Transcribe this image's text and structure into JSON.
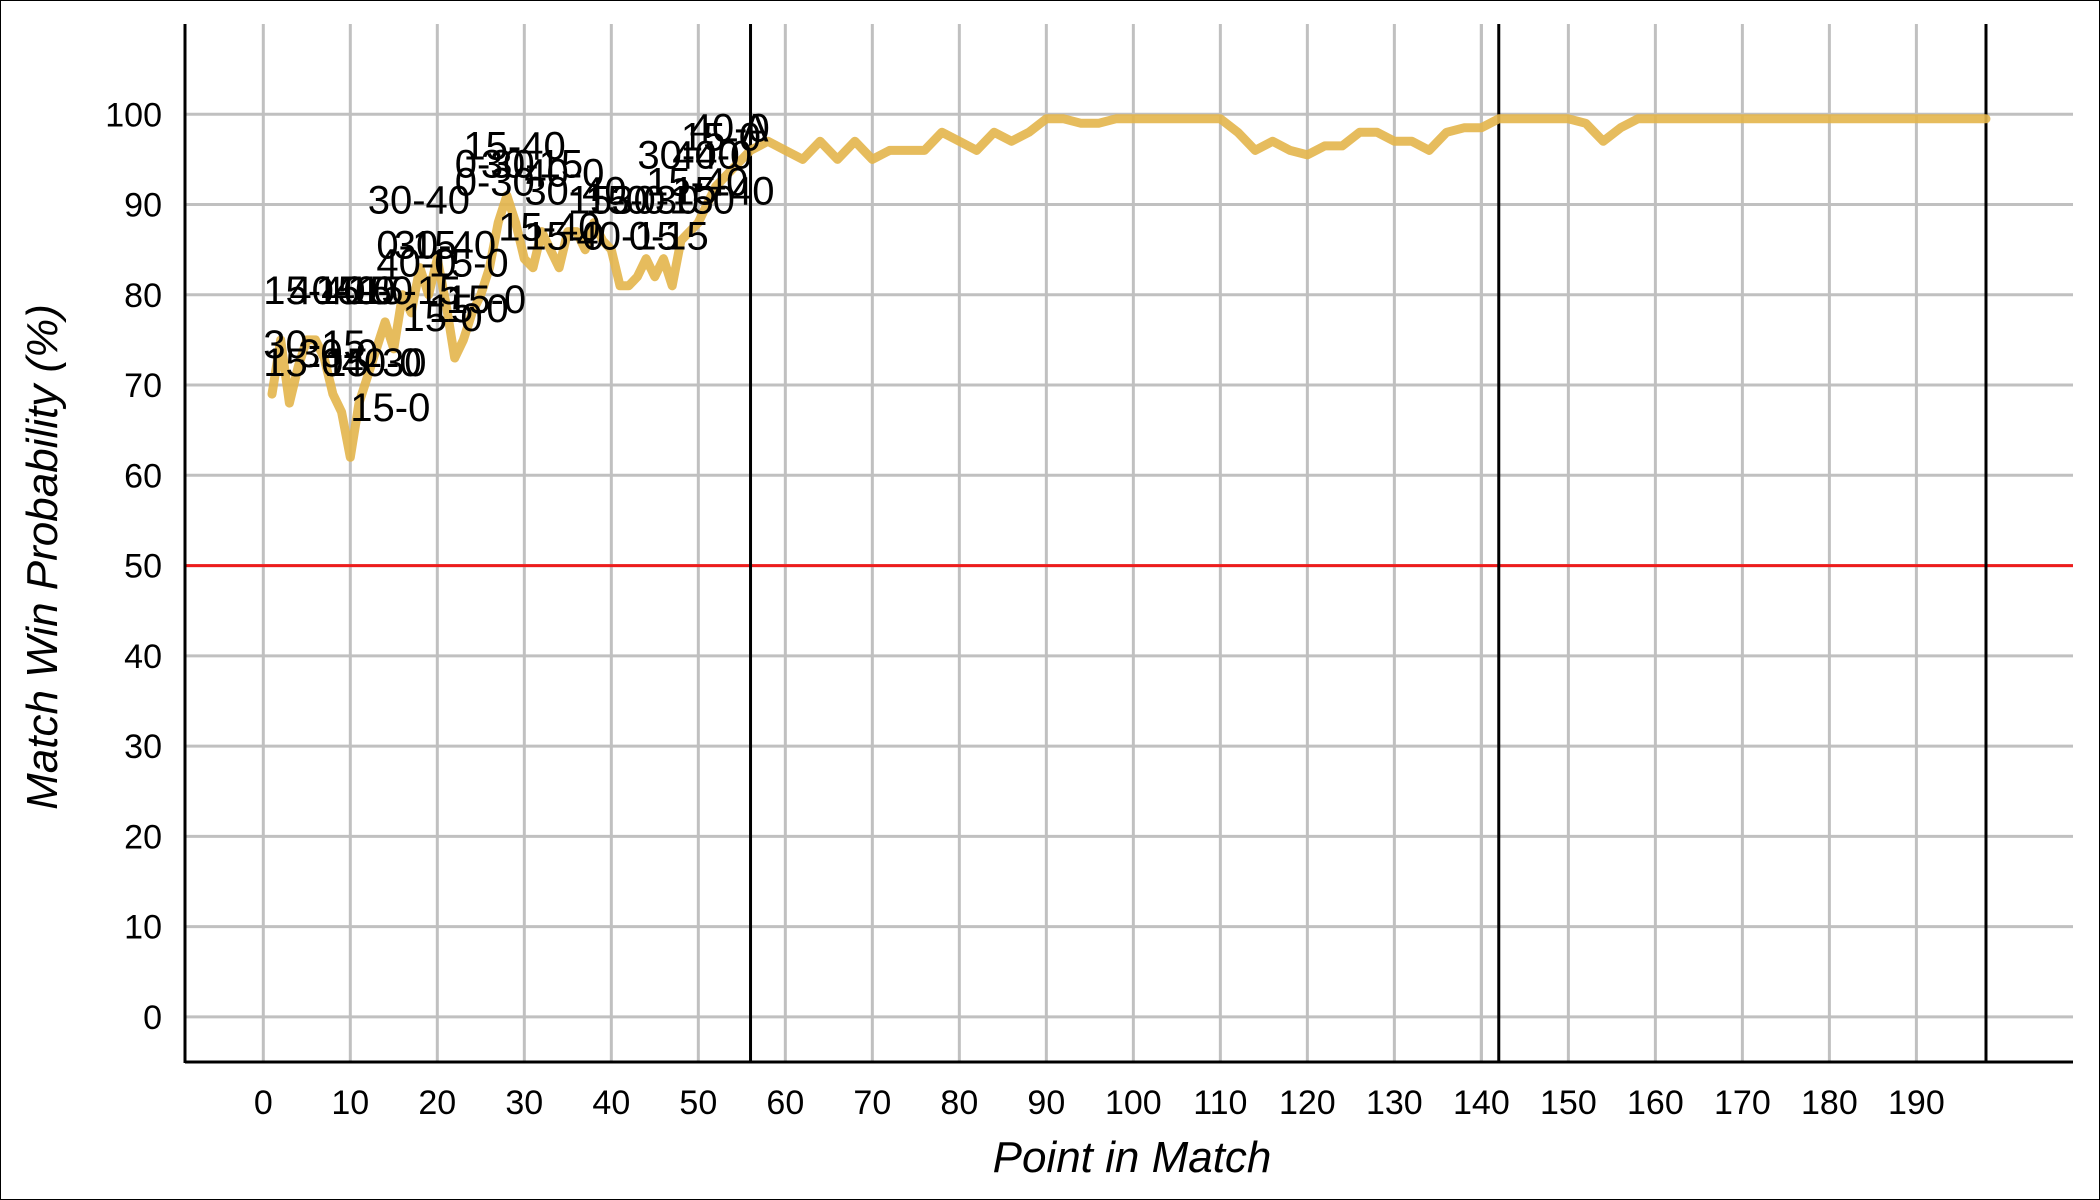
{
  "chart_data": {
    "type": "line",
    "xlabel": "Point in Match",
    "ylabel": "Match Win Probability (%)",
    "xlim": [
      -9,
      208
    ],
    "ylim": [
      -5,
      110
    ],
    "x_ticks": [
      0,
      10,
      20,
      30,
      40,
      50,
      60,
      70,
      80,
      90,
      100,
      110,
      120,
      130,
      140,
      150,
      160,
      170,
      180,
      190
    ],
    "y_ticks": [
      0,
      10,
      20,
      30,
      40,
      50,
      60,
      70,
      80,
      90,
      100
    ],
    "grid": true,
    "reference_line": {
      "y": 50,
      "color": "#ee1c1c"
    },
    "set_boundaries": [
      56,
      142,
      198
    ],
    "series": [
      {
        "color": "#e3b54b",
        "x": [
          1,
          2,
          3,
          4,
          5,
          6,
          7,
          8,
          9,
          10,
          11,
          12,
          13,
          14,
          15,
          16,
          17,
          18,
          19,
          20,
          21,
          22,
          23,
          24,
          25,
          26,
          27,
          28,
          29,
          30,
          31,
          32,
          33,
          34,
          35,
          36,
          37,
          38,
          39,
          40,
          41,
          42,
          43,
          44,
          45,
          46,
          47,
          48,
          49,
          50,
          51,
          52,
          53,
          54,
          55,
          56,
          58,
          60,
          62,
          64,
          66,
          68,
          70,
          72,
          74,
          76,
          78,
          80,
          82,
          84,
          86,
          88,
          90,
          92,
          94,
          96,
          98,
          100,
          102,
          104,
          106,
          108,
          110,
          112,
          114,
          116,
          118,
          120,
          122,
          124,
          126,
          128,
          130,
          132,
          134,
          136,
          138,
          140,
          142,
          144,
          146,
          148,
          150,
          152,
          154,
          156,
          158,
          160,
          162,
          164,
          166,
          168,
          170,
          172,
          174,
          176,
          178,
          180,
          185,
          190,
          195,
          198
        ],
        "y": [
          69,
          75,
          68,
          72,
          75,
          75,
          73,
          69,
          67,
          62,
          68,
          71,
          74,
          77,
          74,
          80,
          78,
          83,
          80,
          84,
          79,
          73,
          75,
          78,
          80,
          83,
          88,
          91,
          88,
          84,
          83,
          87,
          85,
          83,
          87,
          87,
          85,
          88,
          86,
          85,
          81,
          81,
          82,
          84,
          82,
          84,
          81,
          86,
          87,
          88,
          90,
          92,
          93,
          94,
          95,
          96,
          97,
          96,
          95,
          97,
          95,
          97,
          95,
          96,
          96,
          96,
          98,
          97,
          96,
          98,
          97,
          98,
          99.5,
          99.5,
          99,
          99,
          99.5,
          99.5,
          99.5,
          99.5,
          99.5,
          99.5,
          99.5,
          98,
          96,
          97,
          96,
          95.5,
          96.5,
          96.5,
          98,
          98,
          97,
          97,
          96,
          98,
          98.5,
          98.5,
          99.5,
          99.5,
          99.5,
          99.5,
          99.5,
          99,
          97,
          98.5,
          99.5,
          99.5,
          99.5,
          99.5,
          99.5,
          99.5,
          99.5,
          99.5,
          99.5,
          99.5,
          99.5,
          99.5,
          99.5,
          99.5,
          99.5,
          99.5
        ]
      }
    ],
    "annotations": [
      {
        "text": "15-0",
        "x": 10,
        "y": 66
      },
      {
        "text": "15-40",
        "x": 0,
        "y": 79
      },
      {
        "text": "40-15",
        "x": 3,
        "y": 79
      },
      {
        "text": "15-0",
        "x": 6,
        "y": 79
      },
      {
        "text": "40-0",
        "x": 8,
        "y": 79
      },
      {
        "text": "15-15",
        "x": 11,
        "y": 79
      },
      {
        "text": "30-15",
        "x": 0,
        "y": 73
      },
      {
        "text": "15-0",
        "x": 0,
        "y": 71
      },
      {
        "text": "30-0",
        "x": 4,
        "y": 72
      },
      {
        "text": "15-30",
        "x": 7,
        "y": 71
      },
      {
        "text": "40-0",
        "x": 9,
        "y": 71
      },
      {
        "text": "15-0",
        "x": 16,
        "y": 76
      },
      {
        "text": "15-0",
        "x": 19,
        "y": 77
      },
      {
        "text": "15-0",
        "x": 21,
        "y": 78
      },
      {
        "text": "0-15",
        "x": 13,
        "y": 84
      },
      {
        "text": "30-40",
        "x": 15,
        "y": 84
      },
      {
        "text": "40-0",
        "x": 13,
        "y": 82
      },
      {
        "text": "15-0",
        "x": 19,
        "y": 82
      },
      {
        "text": "30-40",
        "x": 12,
        "y": 89
      },
      {
        "text": "15-40",
        "x": 23,
        "y": 95
      },
      {
        "text": "0-30",
        "x": 22,
        "y": 93
      },
      {
        "text": "0-30",
        "x": 22,
        "y": 91
      },
      {
        "text": "30-15",
        "x": 25,
        "y": 93
      },
      {
        "text": "40-0",
        "x": 30,
        "y": 92
      },
      {
        "text": "15-0",
        "x": 35,
        "y": 89
      },
      {
        "text": "15-0",
        "x": 37,
        "y": 89
      },
      {
        "text": "30-40",
        "x": 30,
        "y": 90
      },
      {
        "text": "15-40",
        "x": 27,
        "y": 86
      },
      {
        "text": "15-0",
        "x": 30,
        "y": 85
      },
      {
        "text": "40-15",
        "x": 36,
        "y": 85
      },
      {
        "text": "30-15",
        "x": 40,
        "y": 89
      },
      {
        "text": "0-15",
        "x": 42,
        "y": 85
      },
      {
        "text": "40-0",
        "x": 47,
        "y": 94
      },
      {
        "text": "15-0",
        "x": 48,
        "y": 96
      },
      {
        "text": "30-40",
        "x": 43,
        "y": 94
      },
      {
        "text": "15-40",
        "x": 44,
        "y": 91
      },
      {
        "text": "40-0",
        "x": 49,
        "y": 97
      },
      {
        "text": "A",
        "x": 55,
        "y": 97
      },
      {
        "text": "15-40",
        "x": 47,
        "y": 90
      },
      {
        "text": "30-0",
        "x": 45,
        "y": 89
      }
    ]
  }
}
